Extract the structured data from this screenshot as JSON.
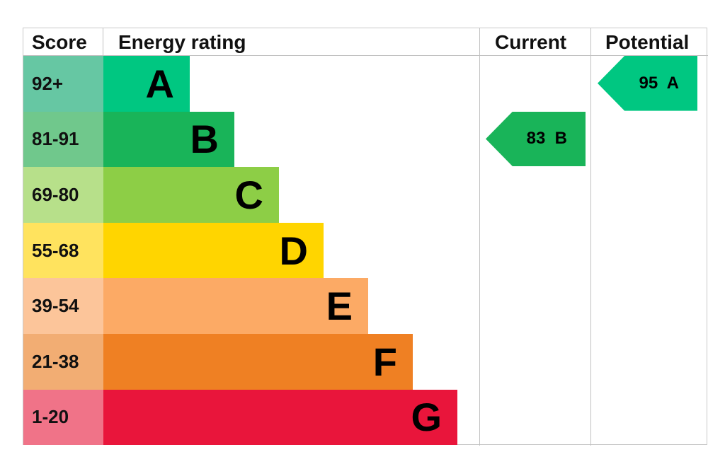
{
  "chart_data": {
    "type": "table",
    "headers": {
      "score": "Score",
      "rating": "Energy rating",
      "current": "Current",
      "potential": "Potential"
    },
    "bands": [
      {
        "letter": "A",
        "range": "92+",
        "color": "#00c781",
        "light": "#66c7a3"
      },
      {
        "letter": "B",
        "range": "81-91",
        "color": "#19b459",
        "light": "#70c88c"
      },
      {
        "letter": "C",
        "range": "69-80",
        "color": "#8dce46",
        "light": "#b7e08a"
      },
      {
        "letter": "D",
        "range": "55-68",
        "color": "#ffd500",
        "light": "#ffe35e"
      },
      {
        "letter": "E",
        "range": "39-54",
        "color": "#fcaa65",
        "light": "#fcc59a"
      },
      {
        "letter": "F",
        "range": "21-38",
        "color": "#ef8023",
        "light": "#f2ad73"
      },
      {
        "letter": "G",
        "range": "1-20",
        "color": "#e9153b",
        "light": "#f07388"
      }
    ],
    "current": {
      "score": 83,
      "band": "B",
      "label": "83  B"
    },
    "potential": {
      "score": 95,
      "band": "A",
      "label": "95  A"
    }
  }
}
